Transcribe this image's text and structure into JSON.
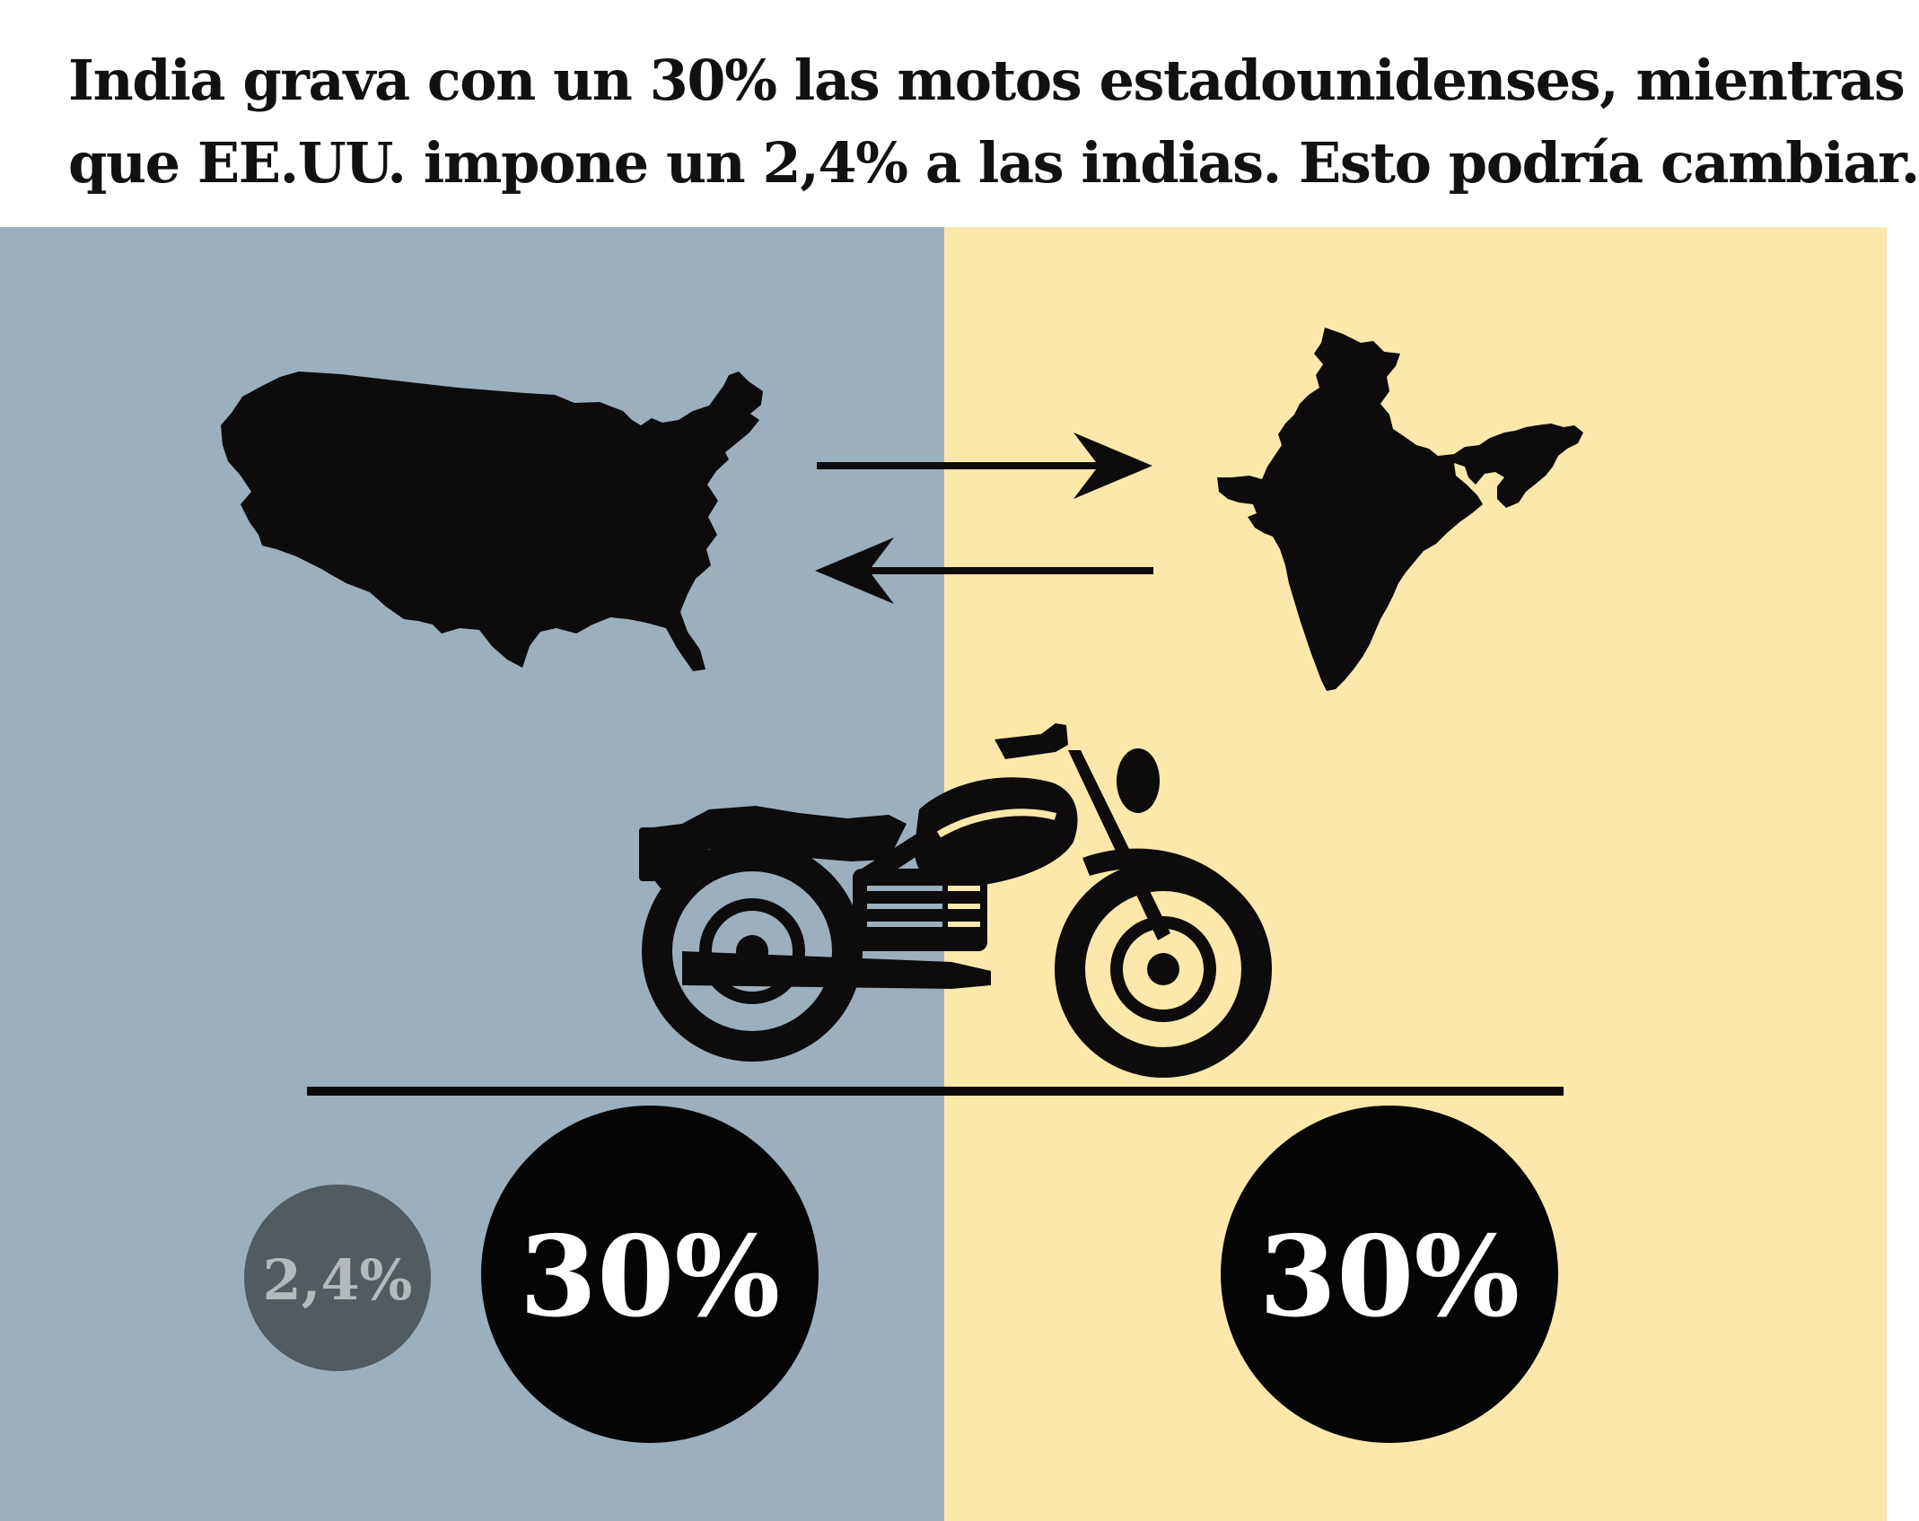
{
  "headline": {
    "line1": "India grava con un 30% las motos estadounidenses, mientras",
    "line2": "que EE.UU. impone un 2,4% a las indias. Esto podría cambiar."
  },
  "colors": {
    "us_panel": "#9cafbd",
    "india_panel": "#fde8ac",
    "ink": "#0d0b0b",
    "small_circle": "#525b60",
    "small_circle_text": "#b4b9bb"
  },
  "icons": {
    "us_map": "usa-map-icon",
    "india_map": "india-map-icon",
    "motorcycle": "motorcycle-icon"
  },
  "tariffs": {
    "us_current": "2,4%",
    "us_possible": "30%",
    "india": "30%"
  }
}
